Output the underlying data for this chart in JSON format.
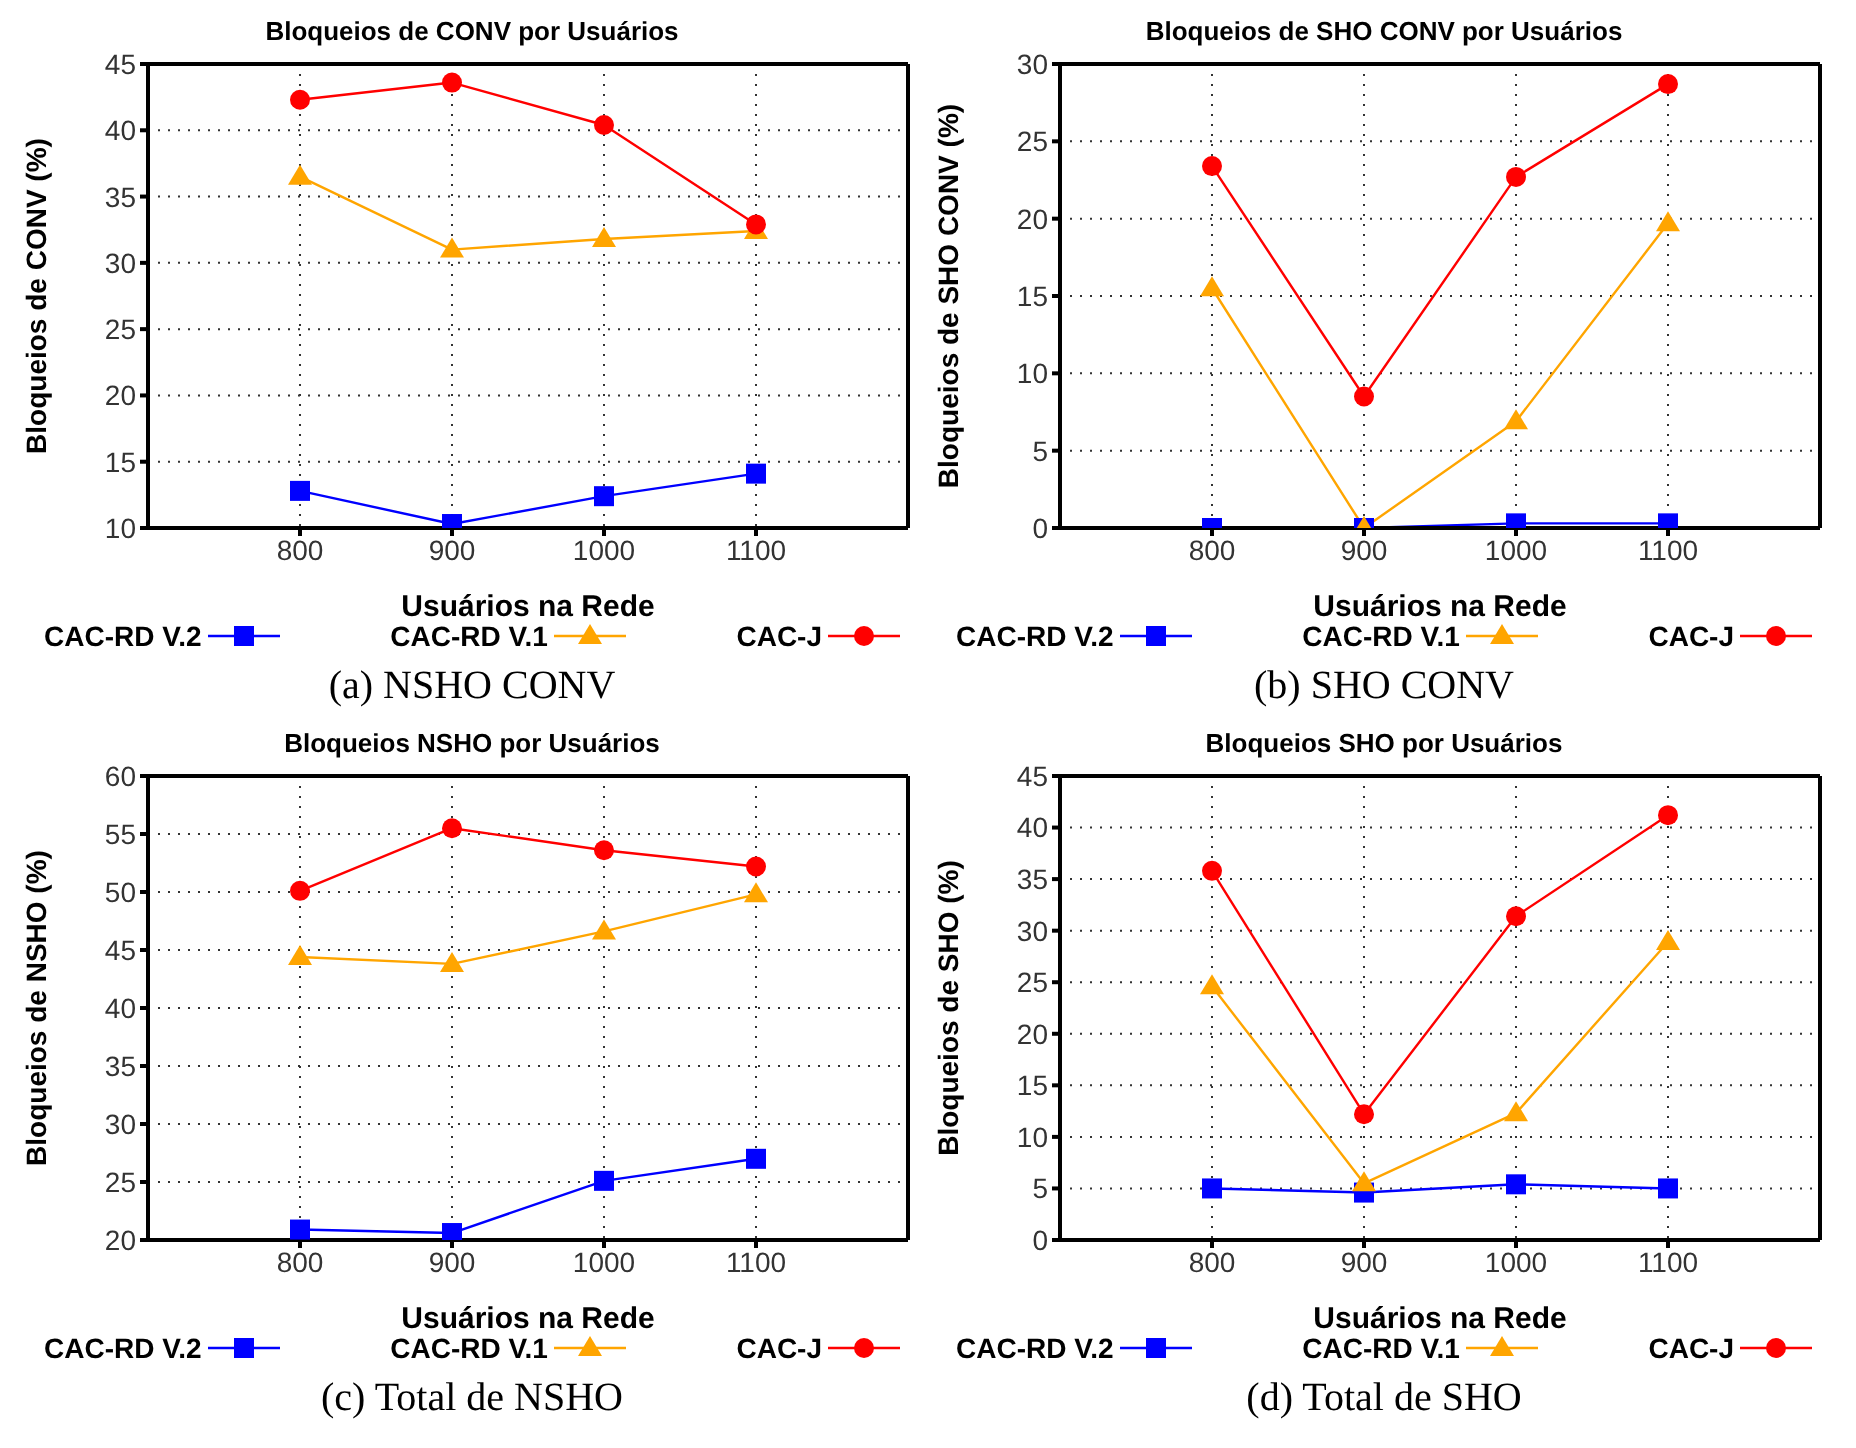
{
  "chart_data": [
    {
      "type": "line",
      "title": "Bloqueios de CONV por Usuários",
      "xlabel": "Usuários na Rede",
      "ylabel": "Bloqueios de  CONV (%)",
      "annotations": [
        "(a)  NSHO CONV"
      ],
      "x": [
        800,
        900,
        1000,
        1100
      ],
      "xlim": [
        700,
        1200
      ],
      "xticks": [
        800,
        900,
        1000,
        1100
      ],
      "ylim": [
        10,
        45
      ],
      "yticks": [
        10,
        15,
        20,
        25,
        30,
        35,
        40,
        45
      ],
      "grid": true,
      "legend": "bottom",
      "line_style": "solid",
      "series": [
        {
          "name": "CAC-RD V.2",
          "color": "#0000ff",
          "marker": "square",
          "values": [
            12.8,
            10.3,
            12.4,
            14.1
          ]
        },
        {
          "name": "CAC-RD V.1",
          "color": "#ffa500",
          "marker": "triangle",
          "values": [
            36.5,
            31.0,
            31.8,
            32.4
          ]
        },
        {
          "name": "CAC-J",
          "color": "#ff0000",
          "marker": "circle",
          "values": [
            42.3,
            43.6,
            40.4,
            32.9
          ]
        }
      ]
    },
    {
      "type": "line",
      "title": "Bloqueios de SHO CONV por Usuários",
      "xlabel": "Usuários na Rede",
      "ylabel": "Bloqueios de SHO CONV (%)",
      "annotations": [
        "(b)  SHO CONV"
      ],
      "x": [
        800,
        900,
        1000,
        1100
      ],
      "xlim": [
        700,
        1200
      ],
      "xticks": [
        800,
        900,
        1000,
        1100
      ],
      "ylim": [
        0,
        30
      ],
      "yticks": [
        0,
        5,
        10,
        15,
        20,
        25,
        30
      ],
      "grid": true,
      "legend": "bottom",
      "line_style": "solid",
      "series": [
        {
          "name": "CAC-RD V.2",
          "color": "#0000ff",
          "marker": "square",
          "values": [
            0,
            0,
            0.3,
            0.3
          ]
        },
        {
          "name": "CAC-RD V.1",
          "color": "#ffa500",
          "marker": "triangle",
          "values": [
            15.5,
            0,
            6.9,
            19.7
          ]
        },
        {
          "name": "CAC-J",
          "color": "#ff0000",
          "marker": "circle",
          "values": [
            23.4,
            8.5,
            22.7,
            28.7
          ]
        }
      ]
    },
    {
      "type": "line",
      "title": "Bloqueios NSHO por Usuários",
      "xlabel": "Usuários na Rede",
      "ylabel": "Bloqueios de NSHO (%)",
      "annotations": [
        "(c)  Total de NSHO"
      ],
      "x": [
        800,
        900,
        1000,
        1100
      ],
      "xlim": [
        700,
        1200
      ],
      "xticks": [
        800,
        900,
        1000,
        1100
      ],
      "ylim": [
        20,
        60
      ],
      "yticks": [
        20,
        25,
        30,
        35,
        40,
        45,
        50,
        55,
        60
      ],
      "grid": true,
      "legend": "bottom",
      "line_style": "solid",
      "series": [
        {
          "name": "CAC-RD V.2",
          "color": "#0000ff",
          "marker": "square",
          "values": [
            20.9,
            20.6,
            25.1,
            27.0
          ]
        },
        {
          "name": "CAC-RD V.1",
          "color": "#ffa500",
          "marker": "triangle",
          "values": [
            44.4,
            43.8,
            46.6,
            49.8
          ]
        },
        {
          "name": "CAC-J",
          "color": "#ff0000",
          "marker": "circle",
          "values": [
            50.1,
            55.5,
            53.6,
            52.2
          ]
        }
      ]
    },
    {
      "type": "line",
      "title": "Bloqueios SHO por Usuários",
      "xlabel": "Usuários na Rede",
      "ylabel": "Bloqueios de  SHO (%)",
      "annotations": [
        "(d)  Total de SHO"
      ],
      "x": [
        800,
        900,
        1000,
        1100
      ],
      "xlim": [
        700,
        1200
      ],
      "xticks": [
        800,
        900,
        1000,
        1100
      ],
      "ylim": [
        0,
        45
      ],
      "yticks": [
        0,
        5,
        10,
        15,
        20,
        25,
        30,
        35,
        40,
        45
      ],
      "grid": true,
      "legend": "bottom",
      "line_style": "solid",
      "series": [
        {
          "name": "CAC-RD V.2",
          "color": "#0000ff",
          "marker": "square",
          "values": [
            5.0,
            4.6,
            5.4,
            5.0
          ]
        },
        {
          "name": "CAC-RD V.1",
          "color": "#ffa500",
          "marker": "triangle",
          "values": [
            24.6,
            5.5,
            12.3,
            28.9
          ]
        },
        {
          "name": "CAC-J",
          "color": "#ff0000",
          "marker": "circle",
          "values": [
            35.8,
            12.2,
            31.4,
            41.2
          ]
        }
      ]
    }
  ]
}
